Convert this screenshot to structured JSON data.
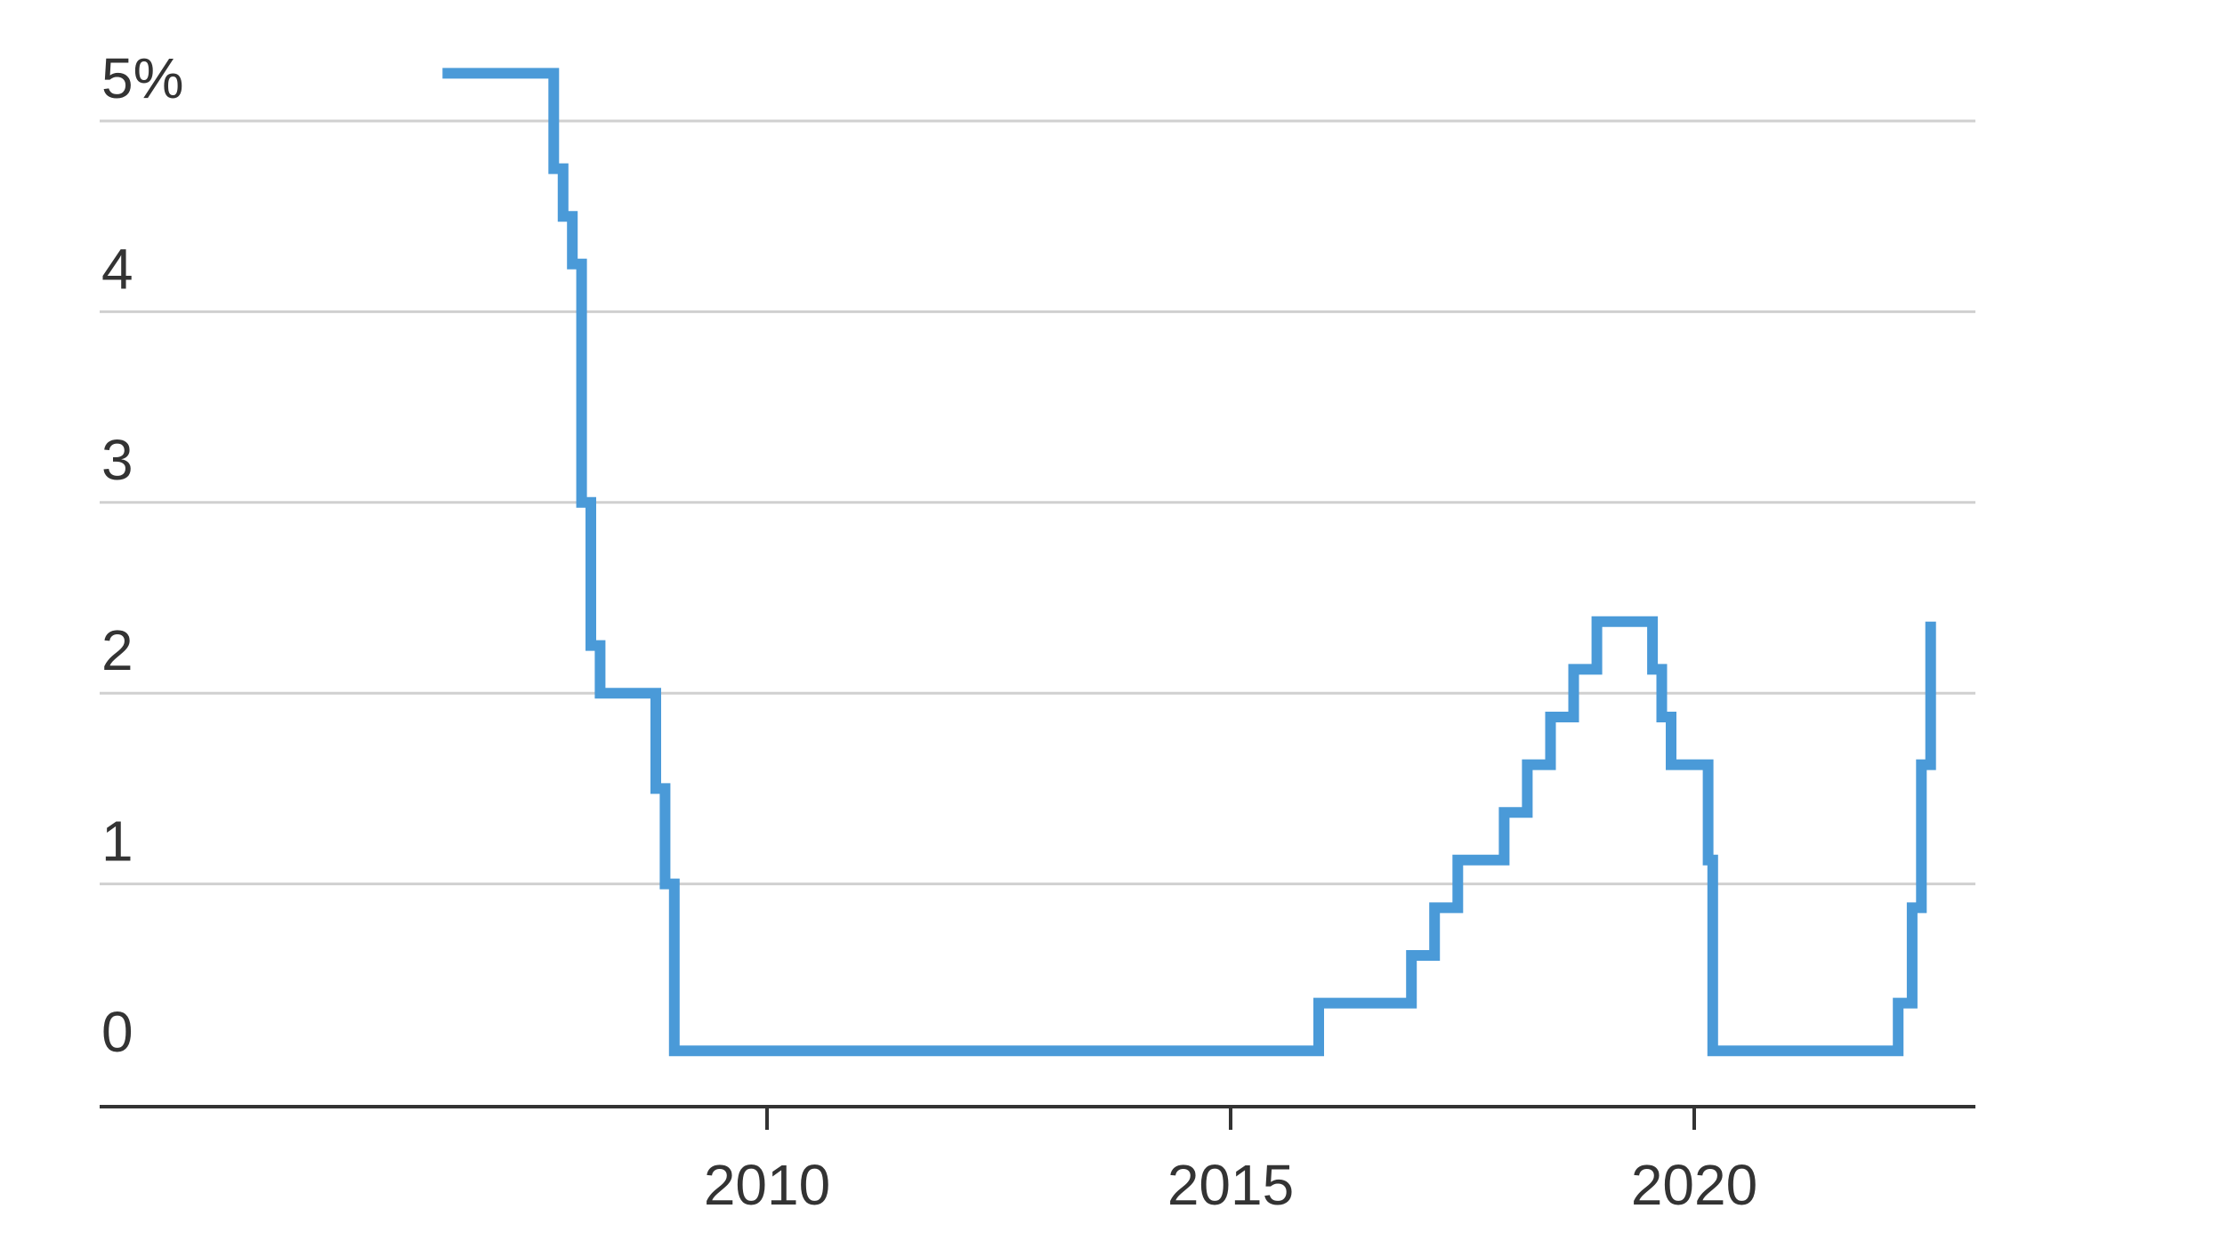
{
  "chart_data": {
    "type": "line",
    "title": "",
    "xlabel": "",
    "ylabel": "",
    "xlim": [
      2002.7,
      2023.3
    ],
    "ylim": [
      0,
      5.25
    ],
    "x_ticks": [
      {
        "value": 2010,
        "label": "2010"
      },
      {
        "value": 2015,
        "label": "2015"
      },
      {
        "value": 2020,
        "label": "2020"
      }
    ],
    "y_ticks": [
      {
        "value": 0,
        "label": "0"
      },
      {
        "value": 1,
        "label": "1"
      },
      {
        "value": 2,
        "label": "2"
      },
      {
        "value": 3,
        "label": "3"
      },
      {
        "value": 4,
        "label": "4"
      },
      {
        "value": 5,
        "label": "5%"
      }
    ],
    "grid": true,
    "line_style": "step",
    "colors": {
      "series": "#4a9ad8",
      "grid": "#d0d0d0",
      "axis": "#333333"
    },
    "series": [
      {
        "name": "",
        "x": [
          2006.5,
          2007.7,
          2007.8,
          2007.9,
          2008.0,
          2008.1,
          2008.2,
          2008.3,
          2008.8,
          2008.9,
          2009.0,
          2015.95,
          2016.95,
          2017.2,
          2017.45,
          2017.95,
          2018.2,
          2018.45,
          2018.7,
          2018.95,
          2019.55,
          2019.65,
          2019.75,
          2020.15,
          2020.2,
          2022.2,
          2022.35,
          2022.45,
          2022.55
        ],
        "y": [
          5.25,
          4.75,
          4.5,
          4.25,
          3.0,
          2.25,
          2.0,
          2.0,
          1.5,
          1.0,
          0.125,
          0.375,
          0.625,
          0.875,
          1.125,
          1.375,
          1.625,
          1.875,
          2.125,
          2.375,
          2.125,
          1.875,
          1.625,
          1.125,
          0.125,
          0.375,
          0.875,
          1.625,
          2.375
        ]
      }
    ]
  }
}
